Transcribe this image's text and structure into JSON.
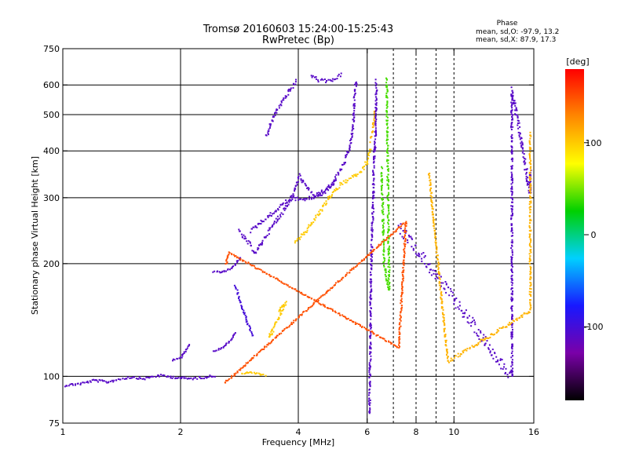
{
  "chart_data": {
    "type": "scatter",
    "title": "Tromsø 20160603 15:24:00-15:25:43",
    "subtitle": "RwPretec (Bp)",
    "xlabel": "Frequency [MHz]",
    "ylabel": "Stationary phase Virtual Height [km]",
    "xscale": "log",
    "yscale": "log",
    "xlim": [
      1,
      16
    ],
    "ylim": [
      75,
      750
    ],
    "xticks": [
      1,
      2,
      4,
      6,
      8,
      10,
      16
    ],
    "xticklabels": [
      "1",
      "2",
      "4",
      "6",
      "8",
      "10",
      "16"
    ],
    "xgrid": [
      2,
      4,
      6
    ],
    "xminor": [
      7,
      8,
      9,
      10
    ],
    "yticks": [
      75,
      100,
      200,
      300,
      400,
      500,
      600,
      750
    ],
    "yticklabels": [
      "75",
      "100",
      "200",
      "300",
      "400",
      "500",
      "600",
      "750"
    ],
    "ygrid": [
      100,
      200,
      300,
      400,
      500,
      600
    ],
    "grid": true,
    "phase_info": {
      "heading": "Phase",
      "line_o": "mean, sd,O: -97.9, 13.2",
      "line_x": "mean, sd,X: 87.9, 17.3"
    },
    "colorbar": {
      "label": "[deg]",
      "range": [
        -180,
        180
      ],
      "ticks": [
        100,
        0,
        -100
      ],
      "ticklabels": [
        "100",
        "0",
        "-100"
      ],
      "colormap": [
        "#000000",
        "#7a00a8",
        "#1818ff",
        "#00d0ff",
        "#00d000",
        "#ffff00",
        "#ff8800",
        "#ff0000"
      ]
    },
    "trace_segments": [
      {
        "phase": -110,
        "points": [
          [
            1.0,
            95
          ],
          [
            1.1,
            96
          ],
          [
            1.2,
            98
          ],
          [
            1.3,
            97
          ],
          [
            1.4,
            99
          ],
          [
            1.5,
            100
          ],
          [
            1.6,
            99
          ],
          [
            1.75,
            101
          ],
          [
            1.9,
            100
          ],
          [
            2.1,
            99
          ],
          [
            2.3,
            100
          ],
          [
            2.45,
            101
          ]
        ],
        "jitter": 3
      },
      {
        "phase": -110,
        "points": [
          [
            1.9,
            111
          ],
          [
            2.0,
            113
          ],
          [
            2.06,
            118
          ],
          [
            2.1,
            123
          ]
        ],
        "jitter": 1.5
      },
      {
        "phase": -110,
        "points": [
          [
            2.42,
            117
          ],
          [
            2.55,
            120
          ],
          [
            2.65,
            124
          ],
          [
            2.75,
            132
          ]
        ],
        "jitter": 1.5
      },
      {
        "phase": -110,
        "points": [
          [
            2.42,
            191
          ],
          [
            2.55,
            191
          ],
          [
            2.7,
            195
          ],
          [
            2.85,
            210
          ]
        ],
        "jitter": 2
      },
      {
        "phase": -100,
        "points": [
          [
            2.75,
            175
          ],
          [
            2.85,
            155
          ],
          [
            2.95,
            140
          ],
          [
            3.05,
            128
          ]
        ],
        "jitter": 3
      },
      {
        "phase": -110,
        "points": [
          [
            2.8,
            245
          ],
          [
            3.0,
            225
          ],
          [
            3.1,
            215
          ],
          [
            3.3,
            240
          ],
          [
            3.5,
            262
          ],
          [
            3.7,
            285
          ],
          [
            3.9,
            315
          ],
          [
            4.0,
            345
          ],
          [
            4.2,
            318
          ],
          [
            4.4,
            305
          ],
          [
            4.65,
            310
          ],
          [
            4.85,
            325
          ],
          [
            5.0,
            345
          ],
          [
            5.2,
            370
          ],
          [
            5.4,
            410
          ],
          [
            5.5,
            470
          ],
          [
            5.55,
            560
          ],
          [
            5.6,
            625
          ]
        ],
        "jitter": 6
      },
      {
        "phase": -110,
        "points": [
          [
            3.0,
            245
          ],
          [
            3.2,
            260
          ],
          [
            3.45,
            275
          ],
          [
            3.7,
            295
          ],
          [
            3.9,
            300
          ],
          [
            4.2,
            298
          ],
          [
            4.45,
            305
          ],
          [
            4.7,
            318
          ],
          [
            5.0,
            335
          ]
        ],
        "jitter": 5
      },
      {
        "phase": -110,
        "points": [
          [
            3.3,
            440
          ],
          [
            3.4,
            480
          ],
          [
            3.5,
            515
          ],
          [
            3.65,
            550
          ],
          [
            3.8,
            585
          ],
          [
            3.95,
            620
          ]
        ],
        "jitter": 5
      },
      {
        "phase": -110,
        "points": [
          [
            4.3,
            640
          ],
          [
            4.5,
            620
          ],
          [
            4.75,
            617
          ],
          [
            5.0,
            630
          ],
          [
            5.15,
            648
          ]
        ],
        "jitter": 4
      },
      {
        "phase": 100,
        "points": [
          [
            2.85,
            102
          ],
          [
            3.0,
            103
          ],
          [
            3.15,
            102
          ],
          [
            3.3,
            101
          ]
        ],
        "jitter": 1.5
      },
      {
        "phase": 100,
        "points": [
          [
            3.55,
            150
          ],
          [
            3.7,
            158
          ],
          [
            3.35,
            128
          ],
          [
            3.45,
            132
          ]
        ],
        "jitter": 3
      },
      {
        "phase": 100,
        "points": [
          [
            3.9,
            228
          ],
          [
            4.1,
            240
          ],
          [
            4.3,
            258
          ],
          [
            4.55,
            278
          ],
          [
            4.8,
            305
          ],
          [
            5.0,
            320
          ],
          [
            5.3,
            335
          ],
          [
            5.6,
            345
          ],
          [
            5.85,
            360
          ],
          [
            6.0,
            380
          ],
          [
            6.1,
            410
          ]
        ],
        "jitter": 6
      },
      {
        "phase": 110,
        "points": [
          [
            6.1,
            430
          ],
          [
            6.2,
            470
          ],
          [
            6.25,
            520
          ]
        ],
        "jitter": 8
      },
      {
        "phase": -110,
        "points": [
          [
            6.05,
            80
          ],
          [
            6.1,
            150
          ],
          [
            6.1,
            180
          ],
          [
            6.15,
            250
          ],
          [
            6.2,
            300
          ],
          [
            6.2,
            350
          ],
          [
            6.25,
            420
          ],
          [
            6.3,
            500
          ],
          [
            6.3,
            620
          ]
        ],
        "jitter": 10
      },
      {
        "phase": -110,
        "points": [
          [
            7.2,
            250
          ],
          [
            7.5,
            240
          ],
          [
            14.0,
            100
          ],
          [
            14.0,
            160
          ],
          [
            14.0,
            270
          ],
          [
            14.0,
            390
          ],
          [
            14.0,
            590
          ],
          [
            15.6,
            310
          ],
          [
            15.6,
            360
          ]
        ],
        "jitter": 15
      },
      {
        "phase": 110,
        "points": [
          [
            8.6,
            350
          ],
          [
            9.6,
            110
          ],
          [
            15.6,
            150
          ],
          [
            15.6,
            450
          ]
        ],
        "jitter": 4
      },
      {
        "phase": 40,
        "points": [
          [
            6.5,
            360
          ],
          [
            6.6,
            200
          ],
          [
            6.8,
            170
          ],
          [
            6.7,
            630
          ]
        ],
        "jitter": 6
      },
      {
        "phase": 150,
        "points": [
          [
            2.6,
            200
          ],
          [
            2.65,
            215
          ],
          [
            7.2,
            120
          ],
          [
            7.5,
            260
          ],
          [
            2.57,
            96
          ]
        ],
        "jitter": 2
      }
    ]
  }
}
